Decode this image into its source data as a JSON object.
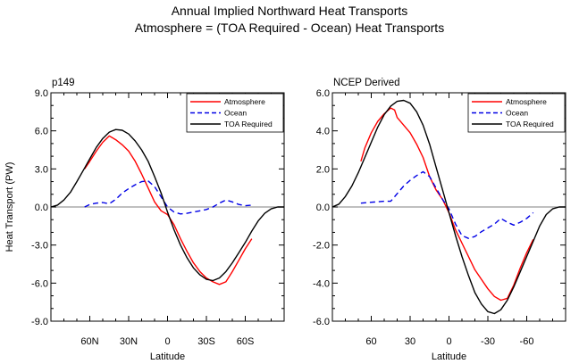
{
  "figure": {
    "title_line1": "Annual Implied Northward Heat Transports",
    "title_line2": "Atmosphere = (TOA Required - Ocean) Heat Transports"
  },
  "chart_data": [
    {
      "type": "line",
      "panel_label": "p149",
      "xlabel": "Latitude",
      "ylabel": "Heat Transport (PW)",
      "xlim": [
        90,
        -90
      ],
      "ylim": [
        -9,
        9
      ],
      "x_ticks": [
        {
          "value": 60,
          "label": "60N"
        },
        {
          "value": 30,
          "label": "30N"
        },
        {
          "value": 0,
          "label": "0"
        },
        {
          "value": -30,
          "label": "30S"
        },
        {
          "value": -60,
          "label": "60S"
        }
      ],
      "y_ticks": [
        {
          "value": 9,
          "label": "9.0"
        },
        {
          "value": 6,
          "label": "6.0"
        },
        {
          "value": 3,
          "label": "3.0"
        },
        {
          "value": 0,
          "label": "0.0"
        },
        {
          "value": -3,
          "label": "-3.0"
        },
        {
          "value": -6,
          "label": "-6.0"
        },
        {
          "value": -9,
          "label": "-9.0"
        }
      ],
      "zero_line": true,
      "legend_position": "top-right",
      "series": [
        {
          "name": "Atmosphere",
          "color": "#ff0000",
          "dash": "solid",
          "x": [
            64,
            60,
            55,
            50,
            45,
            40,
            35,
            30,
            25,
            20,
            15,
            10,
            5,
            0,
            -5,
            -10,
            -15,
            -20,
            -25,
            -30,
            -35,
            -40,
            -45,
            -50,
            -55,
            -60,
            -65
          ],
          "y": [
            3.0,
            3.6,
            4.4,
            5.1,
            5.6,
            5.3,
            4.9,
            4.4,
            3.6,
            2.6,
            1.5,
            0.4,
            -0.3,
            -0.6,
            -1.4,
            -2.5,
            -3.5,
            -4.4,
            -5.1,
            -5.6,
            -5.9,
            -6.1,
            -5.9,
            -5.1,
            -4.2,
            -3.3,
            -2.5
          ]
        },
        {
          "name": "Ocean",
          "color": "#0000e6",
          "dash": "dashed",
          "x": [
            64,
            60,
            55,
            50,
            45,
            40,
            35,
            30,
            25,
            20,
            15,
            10,
            5,
            0,
            -5,
            -10,
            -15,
            -20,
            -25,
            -30,
            -35,
            -40,
            -45,
            -50,
            -55,
            -60,
            -65
          ],
          "y": [
            0.0,
            0.2,
            0.3,
            0.35,
            0.25,
            0.6,
            1.1,
            1.45,
            1.75,
            2.0,
            2.05,
            1.6,
            0.8,
            0.0,
            -0.4,
            -0.55,
            -0.5,
            -0.4,
            -0.3,
            -0.2,
            0.0,
            0.3,
            0.55,
            0.4,
            0.2,
            0.1,
            0.15
          ]
        },
        {
          "name": "TOA Required",
          "color": "#000000",
          "dash": "solid",
          "x": [
            90,
            85,
            80,
            75,
            70,
            65,
            60,
            55,
            50,
            45,
            40,
            35,
            30,
            25,
            20,
            15,
            10,
            5,
            0,
            -5,
            -10,
            -15,
            -20,
            -25,
            -30,
            -35,
            -40,
            -45,
            -50,
            -55,
            -60,
            -65,
            -70,
            -75,
            -80,
            -85,
            -90
          ],
          "y": [
            0.0,
            0.15,
            0.55,
            1.15,
            2.0,
            2.9,
            3.8,
            4.7,
            5.4,
            5.9,
            6.1,
            6.05,
            5.75,
            5.2,
            4.5,
            3.6,
            2.4,
            1.1,
            -0.4,
            -1.8,
            -3.0,
            -4.0,
            -4.8,
            -5.35,
            -5.7,
            -5.8,
            -5.6,
            -5.1,
            -4.4,
            -3.6,
            -2.8,
            -1.9,
            -1.1,
            -0.5,
            -0.15,
            0.0,
            0.0
          ]
        }
      ]
    },
    {
      "type": "line",
      "panel_label": "NCEP Derived",
      "xlabel": "Latitude",
      "ylabel": "",
      "xlim": [
        90,
        -90
      ],
      "ylim": [
        -6,
        6
      ],
      "x_ticks": [
        {
          "value": 60,
          "label": "60"
        },
        {
          "value": 30,
          "label": "30"
        },
        {
          "value": 0,
          "label": "0"
        },
        {
          "value": -30,
          "label": "-30"
        },
        {
          "value": -60,
          "label": "-60"
        }
      ],
      "y_ticks": [
        {
          "value": 6,
          "label": "6.0"
        },
        {
          "value": 4,
          "label": "4.0"
        },
        {
          "value": 2,
          "label": "2.0"
        },
        {
          "value": 0,
          "label": "0.0"
        },
        {
          "value": -2,
          "label": "-2.0"
        },
        {
          "value": -4,
          "label": "-4.0"
        },
        {
          "value": -6,
          "label": "-6.0"
        }
      ],
      "zero_line": true,
      "legend_position": "top-right",
      "series": [
        {
          "name": "Atmosphere",
          "color": "#ff0000",
          "dash": "solid",
          "x": [
            68,
            65,
            60,
            55,
            50,
            45,
            42,
            40,
            35,
            30,
            25,
            20,
            15,
            10,
            5,
            0,
            -5,
            -10,
            -15,
            -20,
            -25,
            -30,
            -35,
            -40,
            -45,
            -50,
            -55,
            -60,
            -65
          ],
          "y": [
            2.4,
            3.1,
            3.9,
            4.5,
            4.9,
            5.2,
            5.1,
            4.7,
            4.3,
            3.9,
            3.3,
            2.6,
            1.6,
            0.9,
            0.4,
            -0.3,
            -1.2,
            -1.9,
            -2.6,
            -3.3,
            -3.8,
            -4.3,
            -4.7,
            -4.9,
            -4.8,
            -4.1,
            -3.2,
            -2.4,
            -1.7
          ]
        },
        {
          "name": "Ocean",
          "color": "#0000e6",
          "dash": "dashed",
          "x": [
            68,
            60,
            50,
            45,
            40,
            35,
            30,
            25,
            20,
            15,
            10,
            5,
            0,
            -5,
            -10,
            -15,
            -20,
            -25,
            -30,
            -35,
            -40,
            -45,
            -50,
            -55,
            -60,
            -65
          ],
          "y": [
            0.2,
            0.25,
            0.3,
            0.3,
            0.7,
            1.1,
            1.4,
            1.65,
            1.85,
            1.6,
            1.0,
            0.4,
            -0.1,
            -0.9,
            -1.5,
            -1.65,
            -1.55,
            -1.3,
            -1.1,
            -0.9,
            -0.6,
            -0.8,
            -0.95,
            -0.8,
            -0.6,
            -0.3
          ]
        },
        {
          "name": "TOA Required",
          "color": "#000000",
          "dash": "solid",
          "x": [
            90,
            85,
            80,
            75,
            70,
            65,
            60,
            55,
            50,
            45,
            40,
            35,
            30,
            25,
            20,
            15,
            10,
            5,
            0,
            -5,
            -10,
            -15,
            -20,
            -25,
            -30,
            -35,
            -40,
            -45,
            -50,
            -55,
            -60,
            -65,
            -70,
            -75,
            -80,
            -85,
            -90
          ],
          "y": [
            0.0,
            0.15,
            0.55,
            1.1,
            1.8,
            2.6,
            3.4,
            4.2,
            4.85,
            5.3,
            5.55,
            5.6,
            5.45,
            5.0,
            4.3,
            3.3,
            2.1,
            0.9,
            -0.3,
            -1.5,
            -2.6,
            -3.6,
            -4.5,
            -5.1,
            -5.5,
            -5.6,
            -5.4,
            -4.9,
            -4.2,
            -3.4,
            -2.6,
            -1.8,
            -1.0,
            -0.4,
            -0.1,
            0.0,
            0.0
          ]
        }
      ]
    }
  ]
}
